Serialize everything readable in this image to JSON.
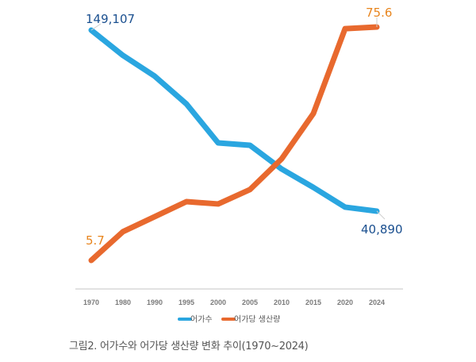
{
  "caption": "그림2. 어가수와 어가당 생산량 변화 추이(1970~2024)",
  "chart_data": {
    "type": "line",
    "title": "",
    "xlabel": "",
    "ylabel": "",
    "categories": [
      "1970",
      "1980",
      "1990",
      "1995",
      "2000",
      "2005",
      "2010",
      "2015",
      "2020",
      "2024"
    ],
    "grid": false,
    "legend_position": "bottom",
    "series": [
      {
        "name": "어가수",
        "color": "#2aa6e0",
        "axis": "left",
        "ylim": [
          20000,
          155000
        ],
        "values": [
          149107,
          134000,
          121600,
          105000,
          81700,
          80300,
          66100,
          55100,
          43300,
          40890
        ],
        "data_labels": {
          "1970": "149,107",
          "2024": "40,890"
        },
        "label_color": "#1a4f8f"
      },
      {
        "name": "어가당 생산량",
        "color": "#e8692e",
        "axis": "right",
        "ylim": [
          0,
          80
        ],
        "values": [
          5.7,
          14.3,
          18.8,
          23.3,
          22.6,
          26.9,
          36.1,
          49.7,
          75.1,
          75.6
        ],
        "data_labels": {
          "1970": "5.7",
          "2024": "75.6"
        },
        "label_color": "#e8851e"
      }
    ]
  }
}
